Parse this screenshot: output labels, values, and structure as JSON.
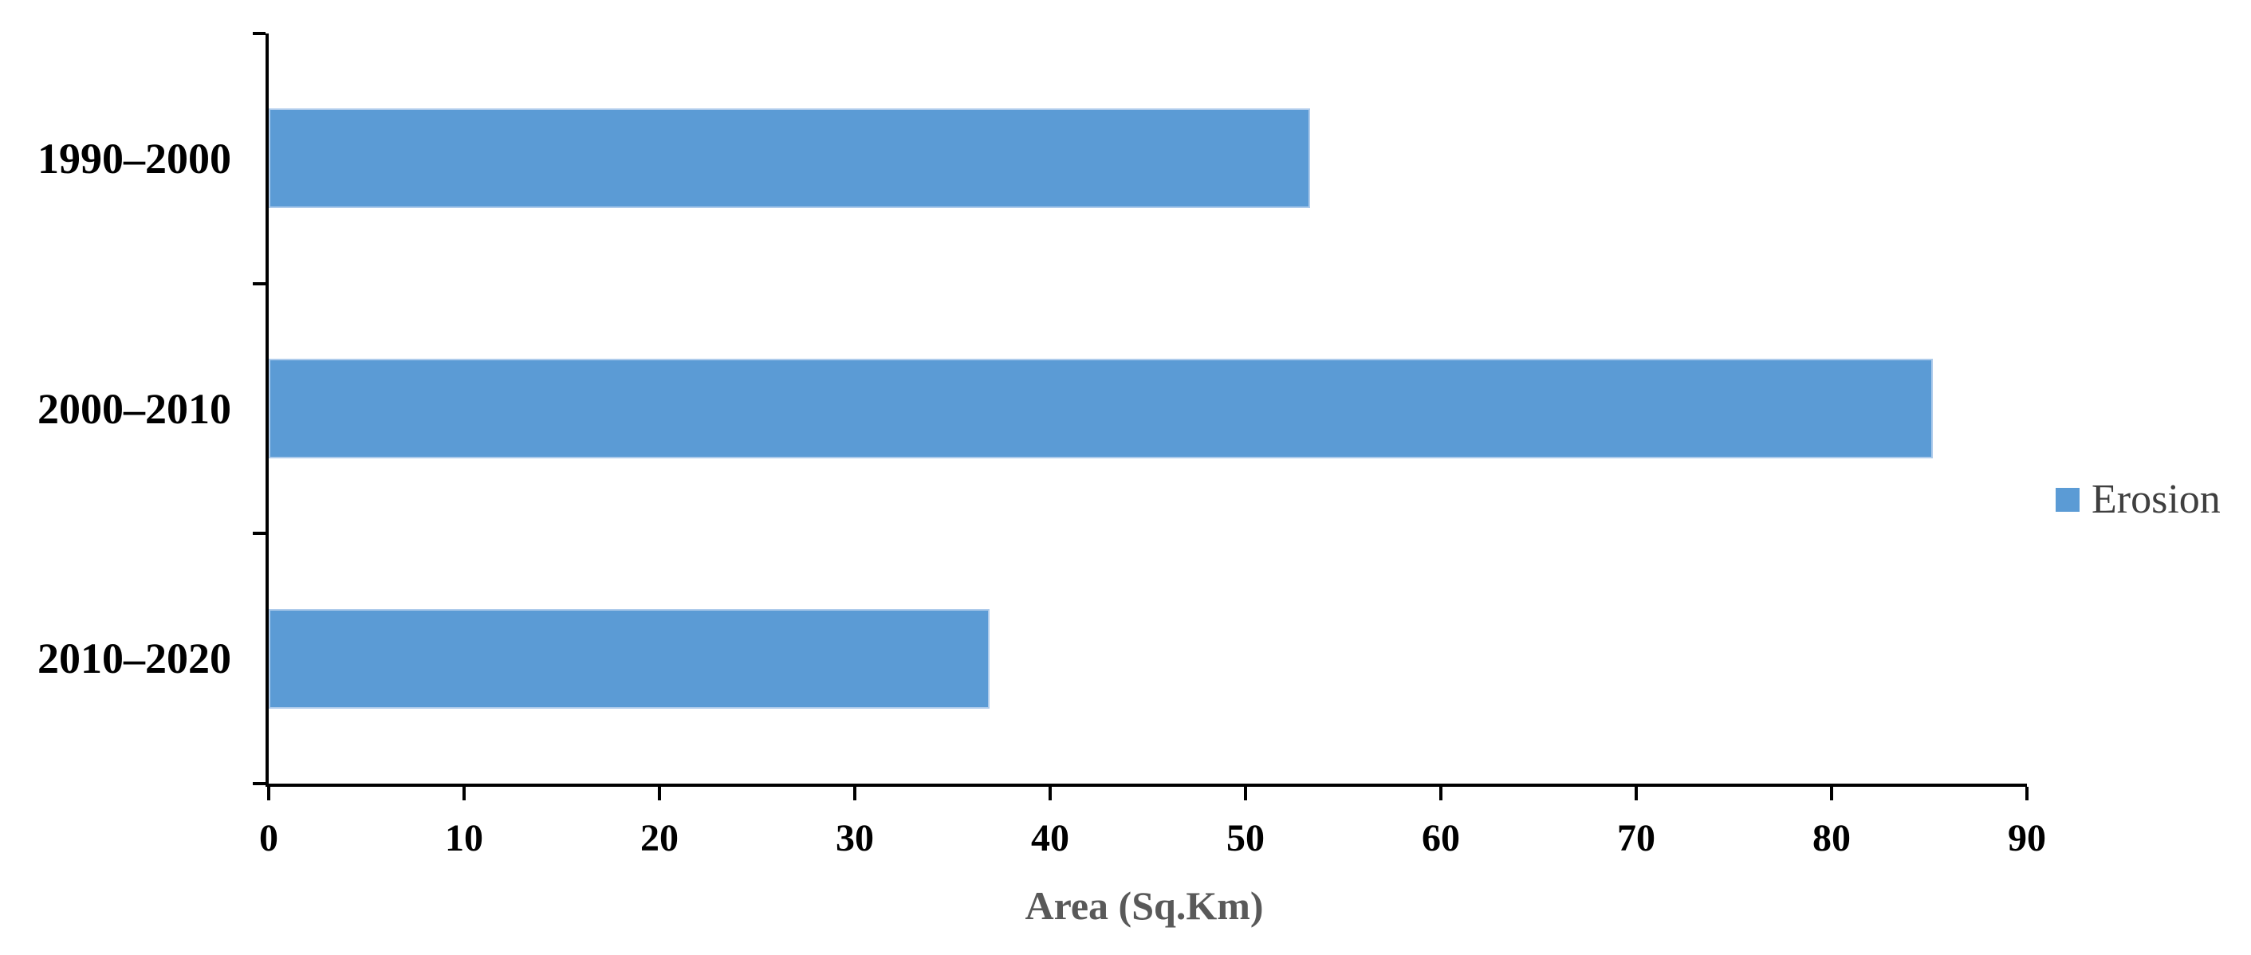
{
  "chart_data": {
    "type": "bar",
    "orientation": "horizontal",
    "title": "",
    "xlabel": "Area (Sq.Km)",
    "ylabel": "",
    "categories": [
      "1990–2000",
      "2000–2010",
      "2010–2020"
    ],
    "series": [
      {
        "name": "Erosion",
        "values": [
          53.3,
          85.2,
          36.9
        ]
      }
    ],
    "xlim": [
      0,
      90
    ],
    "xticks": [
      0,
      10,
      20,
      30,
      40,
      50,
      60,
      70,
      80,
      90
    ],
    "grid": false,
    "legend_position": "right-middle"
  },
  "legend": {
    "items": [
      {
        "label": "Erosion",
        "color": "#5B9BD5"
      }
    ]
  },
  "colors": {
    "bar_fill": "#5B9BD5",
    "bar_border": "#AECBEB",
    "axis_line": "#000000",
    "tick_text": "#000000",
    "category_text": "#000000",
    "xlabel_text": "#595959",
    "legend_text": "#3f3f3f",
    "background": "#ffffff"
  }
}
